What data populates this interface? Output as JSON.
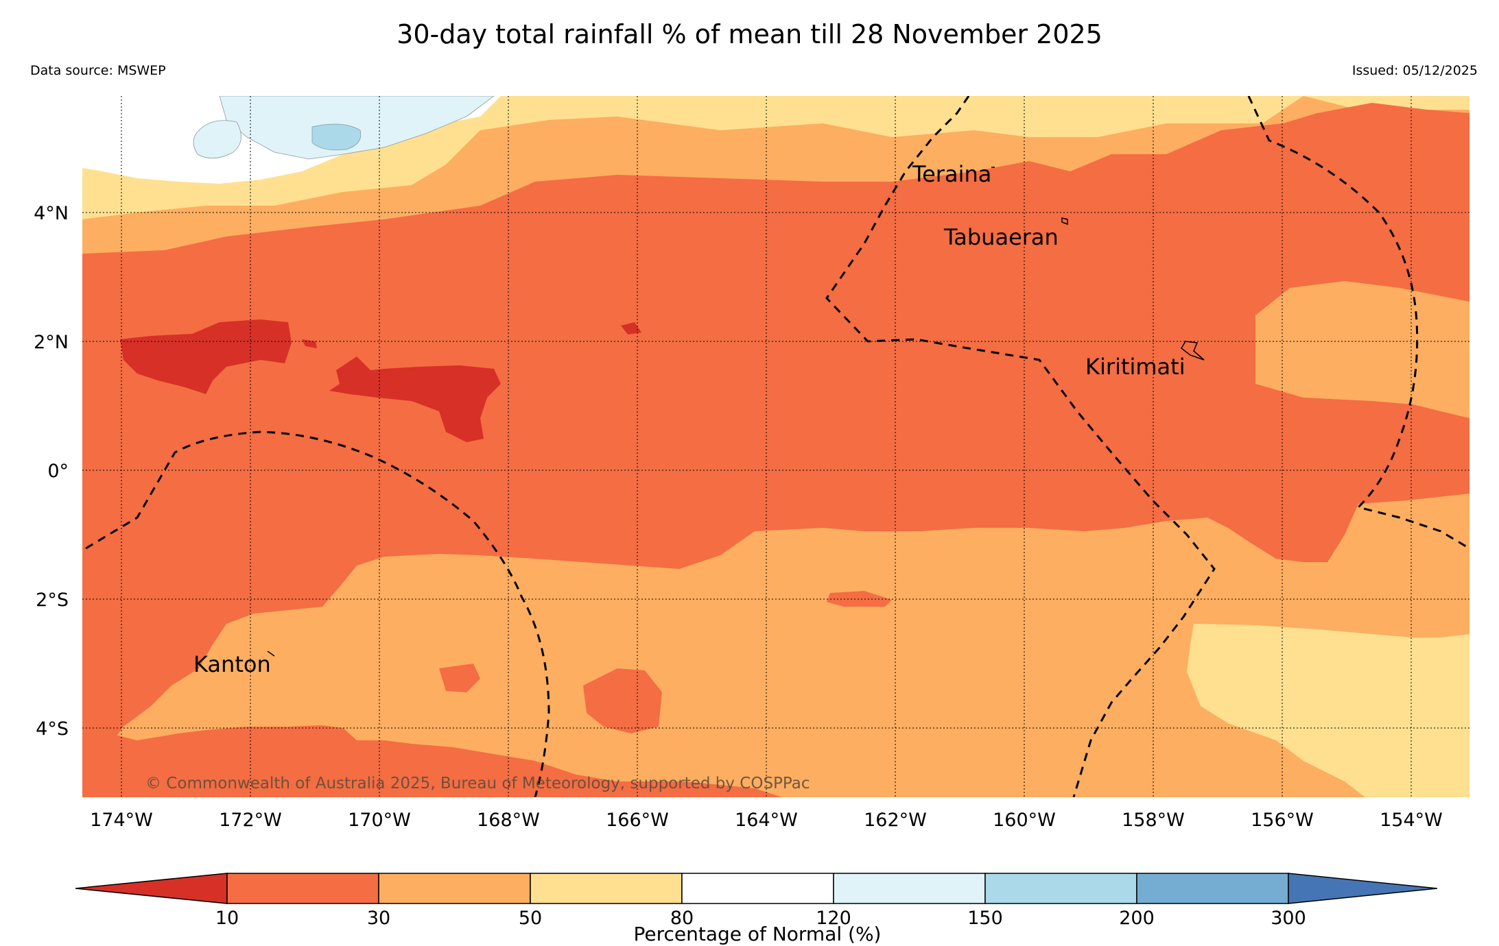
{
  "title": "30-day total rainfall % of mean till 28 November 2025",
  "data_source": "Data source: MSWEP",
  "issued": "Issued: 05/12/2025",
  "copyright": "© Commonwealth of Australia 2025, Bureau of Meteorology, supported by COSPPac",
  "longitude_ticks": [
    "174°W",
    "172°W",
    "170°W",
    "168°W",
    "166°W",
    "164°W",
    "162°W",
    "160°W",
    "158°W",
    "156°W",
    "154°W"
  ],
  "latitude_ticks": [
    "4°N",
    "2°N",
    "0°",
    "2°S",
    "4°S"
  ],
  "places": {
    "teraina": "Teraina",
    "tabuaeran": "Tabuaeran",
    "kiritimati": "Kiritimati",
    "kanton": "Kanton"
  },
  "legend": {
    "title": "Percentage of Normal (%)",
    "ticks": [
      "10",
      "30",
      "50",
      "80",
      "120",
      "150",
      "200",
      "300"
    ],
    "colors": [
      "#d73027",
      "#f46d43",
      "#fdae61",
      "#fee090",
      "#ffffff",
      "#e0f3f8",
      "#abd9e9",
      "#74add1",
      "#4575b4"
    ]
  }
}
